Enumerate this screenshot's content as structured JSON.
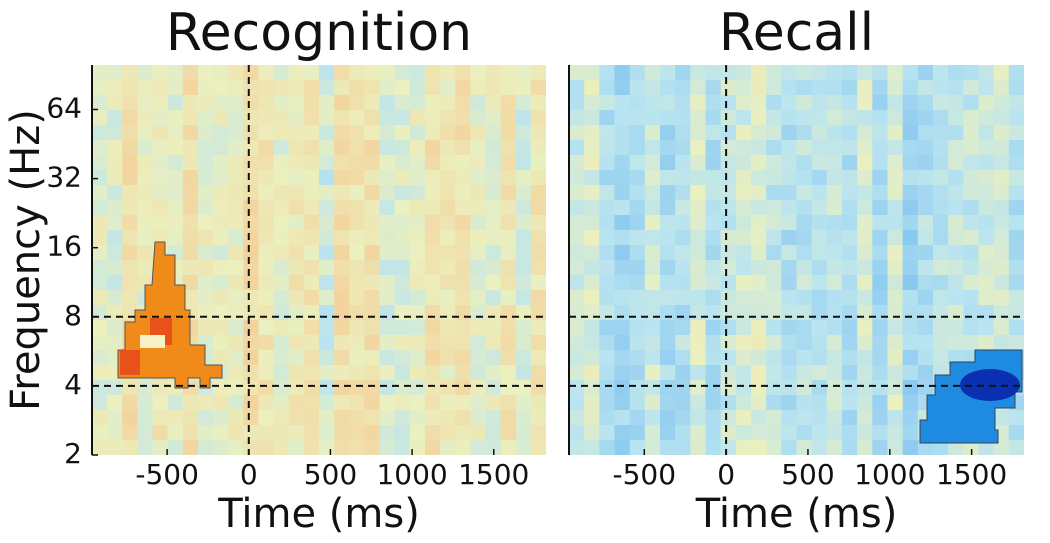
{
  "chart_data": [
    {
      "type": "heatmap",
      "title": "Recognition",
      "xlabel": "Time (ms)",
      "ylabel": "Frequency (Hz)",
      "xlim": [
        -960,
        1820
      ],
      "xticks": [
        -500,
        0,
        500,
        1000,
        1500
      ],
      "ylim": [
        2,
        100
      ],
      "yticks": [
        2,
        4,
        8,
        16,
        32,
        64
      ],
      "log_y": true,
      "vlines": [
        0
      ],
      "hlines": [
        4,
        8
      ]
    },
    {
      "type": "heatmap",
      "title": "Recall",
      "xlabel": "Time (ms)",
      "xlim": [
        -960,
        1820
      ],
      "xticks": [
        -500,
        0,
        500,
        1000,
        1500
      ],
      "ylim": [
        2,
        100
      ],
      "log_y": true,
      "vlines": [
        0
      ],
      "hlines": [
        4,
        8
      ]
    }
  ]
}
